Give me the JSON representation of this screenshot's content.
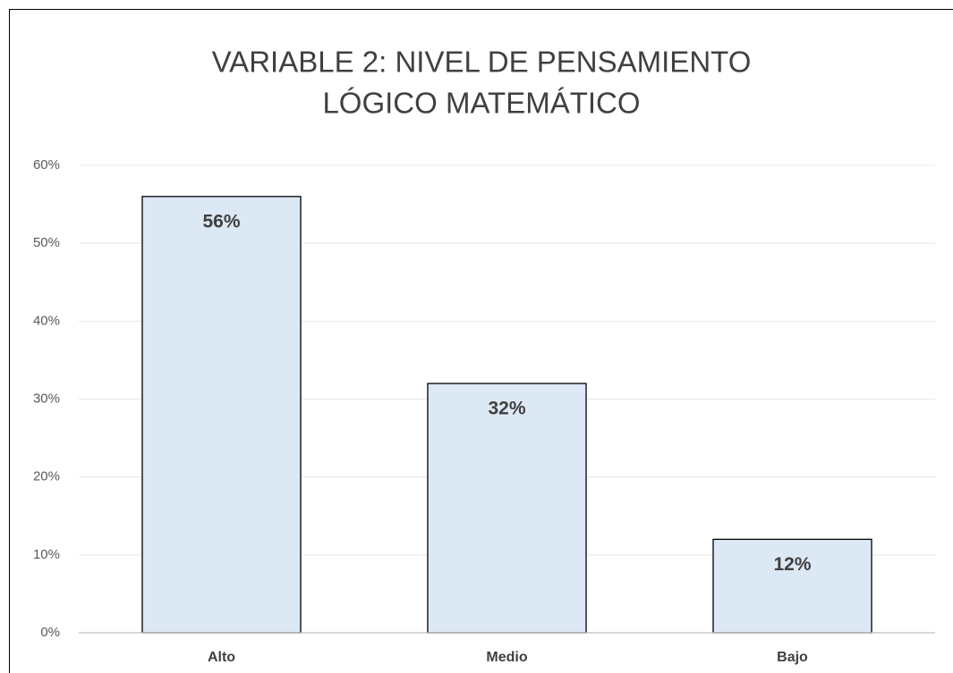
{
  "chart_data": {
    "type": "bar",
    "title": [
      "VARIABLE 2: NIVEL DE PENSAMIENTO",
      "LÓGICO MATEMÁTICO"
    ],
    "categories": [
      "Alto",
      "Medio",
      "Bajo"
    ],
    "values": [
      56,
      32,
      12
    ],
    "value_labels": [
      "56%",
      "32%",
      "12%"
    ],
    "color": "#dde8f5",
    "ylim": [
      0,
      60
    ],
    "yticks": [
      {
        "value": 0,
        "label": "0%"
      },
      {
        "value": 10,
        "label": "10%"
      },
      {
        "value": 20,
        "label": "20%"
      },
      {
        "value": 30,
        "label": "30%"
      },
      {
        "value": 40,
        "label": "40%"
      },
      {
        "value": 50,
        "label": "50%"
      },
      {
        "value": 60,
        "label": "60%"
      }
    ],
    "grid": true
  }
}
